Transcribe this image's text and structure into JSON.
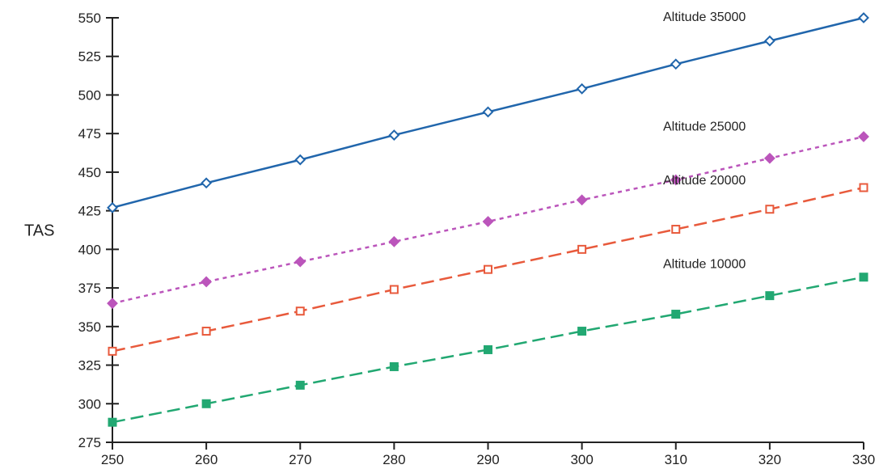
{
  "chart_data": {
    "type": "line",
    "title": "",
    "xlabel": "",
    "ylabel": "TAS",
    "xlim": [
      250,
      330
    ],
    "ylim": [
      275,
      550
    ],
    "x": [
      250,
      260,
      270,
      280,
      290,
      300,
      310,
      320,
      330
    ],
    "xticks": [
      "250",
      "260",
      "270",
      "280",
      "290",
      "300",
      "310",
      "320",
      "330"
    ],
    "yticks": [
      "275",
      "300",
      "325",
      "350",
      "375",
      "400",
      "425",
      "450",
      "475",
      "500",
      "525",
      "550"
    ],
    "grid": false,
    "legend": "none",
    "series": [
      {
        "name": "Altitude 35000",
        "color": "#2166ac",
        "line_style": "solid",
        "marker": "diamond-open",
        "values": [
          427,
          443,
          458,
          474,
          489,
          504,
          520,
          535,
          550
        ]
      },
      {
        "name": "Altitude 25000",
        "color": "#bb55bb",
        "line_style": "dotted",
        "marker": "diamond-filled",
        "values": [
          365,
          379,
          392,
          405,
          418,
          432,
          445,
          459,
          473
        ]
      },
      {
        "name": "Altitude 20000",
        "color": "#e85a3c",
        "line_style": "dashed",
        "marker": "square-open",
        "values": [
          334,
          347,
          360,
          374,
          387,
          400,
          413,
          426,
          440
        ]
      },
      {
        "name": "Altitude 10000",
        "color": "#22a872",
        "line_style": "dashed",
        "marker": "square-filled",
        "values": [
          288,
          300,
          312,
          324,
          335,
          347,
          358,
          370,
          382
        ]
      }
    ]
  }
}
